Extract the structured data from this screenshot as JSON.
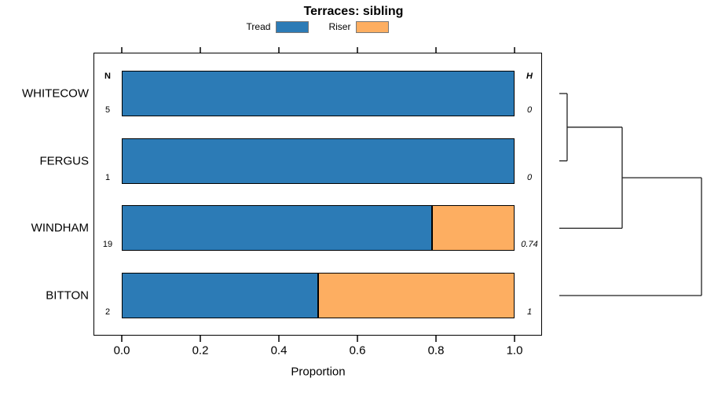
{
  "chart_data": {
    "type": "bar",
    "variant": "horizontal-stacked-proportion-with-dendrogram",
    "title": "Terraces: sibling",
    "xlabel": "Proportion",
    "xlim": [
      0,
      1
    ],
    "xticks": [
      {
        "value": 0.0,
        "label": "0.0"
      },
      {
        "value": 0.2,
        "label": "0.2"
      },
      {
        "value": 0.4,
        "label": "0.4"
      },
      {
        "value": 0.6,
        "label": "0.6"
      },
      {
        "value": 0.8,
        "label": "0.8"
      },
      {
        "value": 1.0,
        "label": "1.0"
      }
    ],
    "grid": false,
    "legend_position": "top-center",
    "categories": [
      "WHITECOW",
      "FERGUS",
      "WINDHAM",
      "BITTON"
    ],
    "series": [
      {
        "name": "Tread",
        "color": "#2c7bb6",
        "values": [
          1.0,
          1.0,
          0.79,
          0.5
        ]
      },
      {
        "name": "Riser",
        "color": "#fdae61",
        "values": [
          0.0,
          0.0,
          0.21,
          0.5
        ]
      }
    ],
    "annotations": {
      "n_header": "N",
      "h_header": "H",
      "n_values": [
        "5",
        "1",
        "19",
        "2"
      ],
      "h_values": [
        "0",
        "0",
        "0.74",
        "1"
      ]
    },
    "dendrogram": {
      "leaves": [
        "WHITECOW",
        "FERGUS",
        "WINDHAM",
        "BITTON"
      ],
      "merges": [
        {
          "children": [
            "leaf:0",
            "leaf:1"
          ],
          "height": 0.055
        },
        {
          "children": [
            "node:0",
            "leaf:2"
          ],
          "height": 0.442
        },
        {
          "children": [
            "node:1",
            "leaf:3"
          ],
          "height": 1.0
        }
      ]
    },
    "colors": {
      "bar_border": "#000000",
      "axis": "#000000",
      "dendrogram_line": "#1f1f1f",
      "legend_box_border": "#777777",
      "background": "#ffffff"
    }
  }
}
